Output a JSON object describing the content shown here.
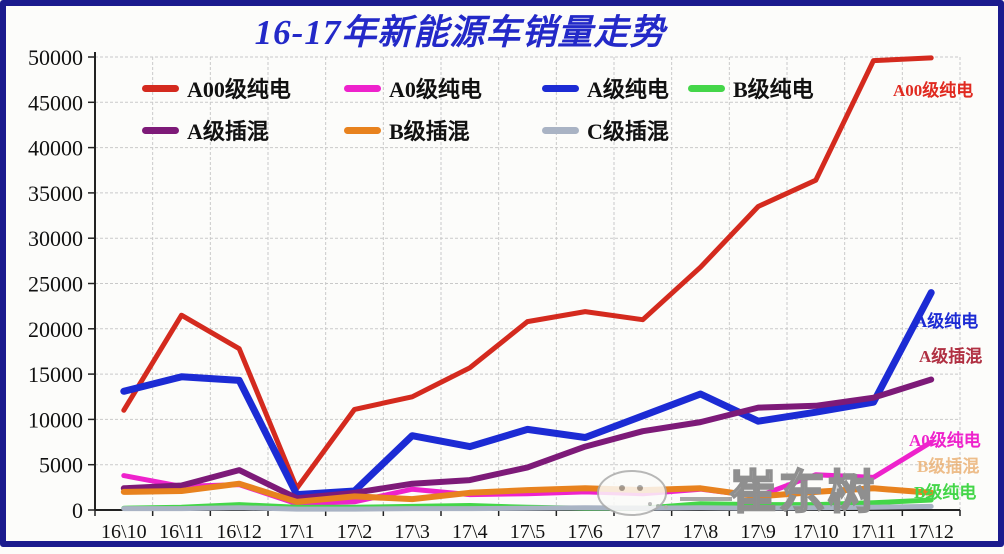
{
  "window": {
    "frame_color": "#1b1b8e",
    "background": "#fcfcfa"
  },
  "chart_data": {
    "type": "line",
    "title": "16-17年新能源车销量走势",
    "title_color": "#2329c8",
    "xlabel": "",
    "ylabel": "",
    "ylim": [
      0,
      50000
    ],
    "ytick_step": 5000,
    "yticks": [
      "0",
      "5000",
      "10000",
      "15000",
      "20000",
      "25000",
      "30000",
      "35000",
      "40000",
      "45000",
      "50000"
    ],
    "grid": "both-dashed",
    "legend_position": "inside-top-two-rows",
    "categories": [
      "16\\10",
      "16\\11",
      "16\\12",
      "17\\1",
      "17\\2",
      "17\\3",
      "17\\4",
      "17\\5",
      "17\\6",
      "17\\7",
      "17\\8",
      "17\\9",
      "17\\10",
      "17\\11",
      "17\\12"
    ],
    "series": [
      {
        "name": "A00级纯电",
        "color": "#d42a1e",
        "width": 5,
        "values": [
          11000,
          21500,
          17800,
          2400,
          11100,
          12500,
          15700,
          20800,
          21900,
          21000,
          26800,
          33500,
          36400,
          49600,
          49900
        ]
      },
      {
        "name": "A0级纯电",
        "color": "#ee22cc",
        "width": 5,
        "values": [
          3800,
          2600,
          2800,
          700,
          900,
          2300,
          1700,
          1800,
          2000,
          1800,
          2300,
          1500,
          3900,
          3600,
          7500
        ]
      },
      {
        "name": "A级纯电",
        "color": "#1c2bd4",
        "width": 7,
        "values": [
          13100,
          14700,
          14300,
          1700,
          2100,
          8200,
          7000,
          8900,
          8000,
          10400,
          12800,
          9800,
          10800,
          11900,
          24000
        ]
      },
      {
        "name": "B级纯电",
        "color": "#44d649",
        "width": 5,
        "values": [
          200,
          300,
          600,
          300,
          300,
          400,
          500,
          300,
          200,
          200,
          700,
          600,
          600,
          800,
          1100
        ]
      },
      {
        "name": "A级插混",
        "color": "#7d1a78",
        "width": 6,
        "values": [
          2400,
          2700,
          4400,
          1300,
          1900,
          2900,
          3300,
          4700,
          7000,
          8700,
          9700,
          11300,
          11500,
          12400,
          14400
        ]
      },
      {
        "name": "B级插混",
        "color": "#e8821e",
        "width": 6,
        "values": [
          2000,
          2100,
          2900,
          900,
          1500,
          1200,
          1900,
          2200,
          2400,
          2200,
          2400,
          1500,
          2000,
          2400,
          1900
        ]
      },
      {
        "name": "C级插混",
        "color": "#a9b3c4",
        "width": 5,
        "values": [
          150,
          150,
          250,
          100,
          100,
          150,
          150,
          200,
          250,
          200,
          250,
          200,
          250,
          300,
          400
        ]
      }
    ]
  },
  "right_labels": [
    {
      "text": "A00级纯电",
      "color": "#e02a20"
    },
    {
      "text": "A级纯电",
      "color": "#1c2bd4"
    },
    {
      "text": "A级插混",
      "color": "#b03042"
    },
    {
      "text": "A0级纯电",
      "color": "#ee22cc"
    },
    {
      "text": "B级插混",
      "color": "#e8a35c"
    },
    {
      "text": "B级纯电",
      "color": "#44d649"
    }
  ],
  "watermark": {
    "text": "崔东树"
  }
}
